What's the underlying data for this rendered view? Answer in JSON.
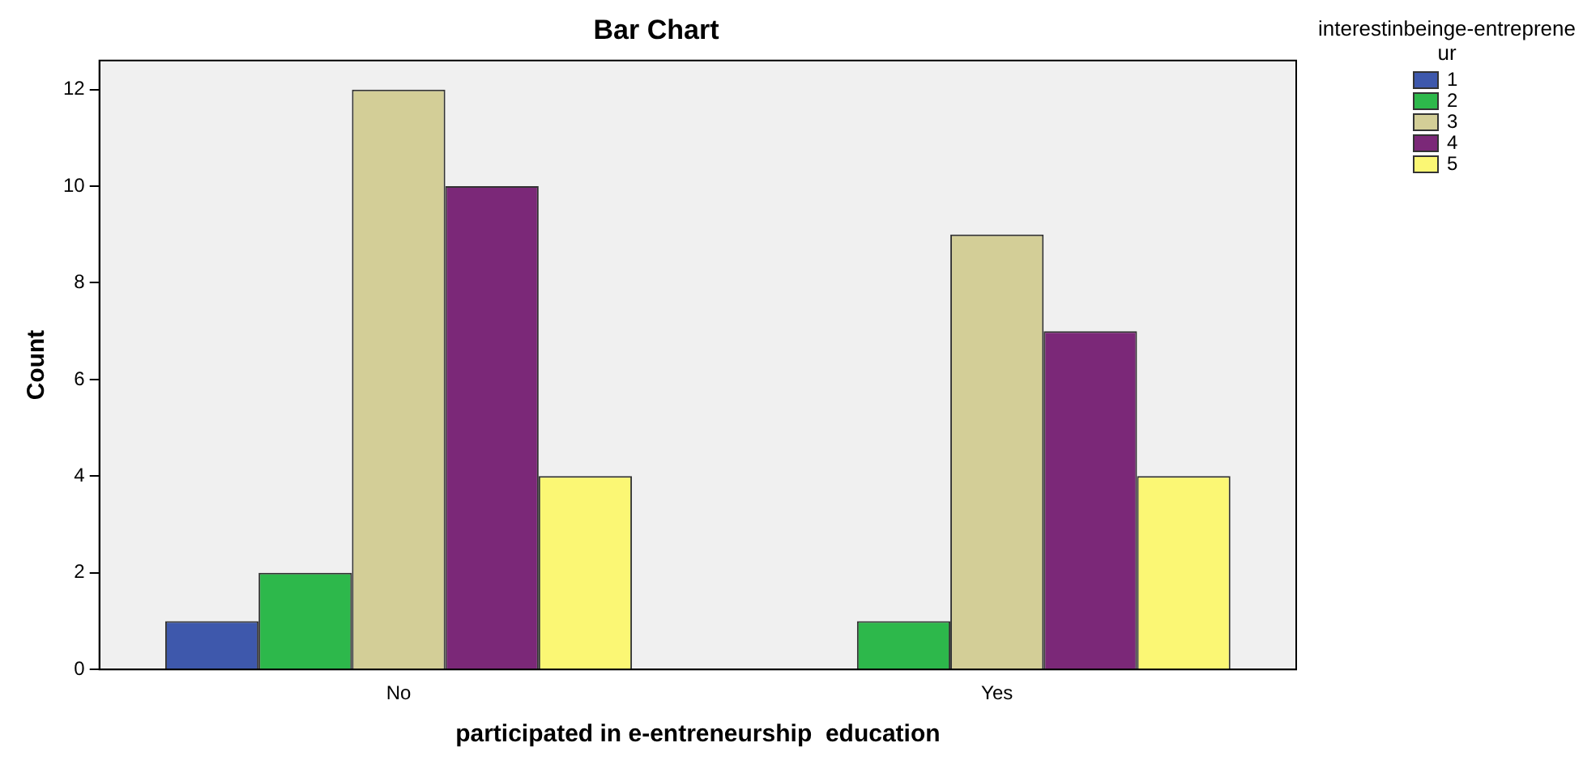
{
  "chart_data": {
    "type": "bar",
    "title": "Bar Chart",
    "xlabel": "participated in e-entreneurship  education",
    "ylabel": "Count",
    "legend_title": "interestinbeinge-entrepreneur",
    "categories": [
      "No",
      "Yes"
    ],
    "series": [
      {
        "name": "1",
        "color": "#3e58ac",
        "values": [
          1,
          null
        ]
      },
      {
        "name": "2",
        "color": "#2db84b",
        "values": [
          2,
          1
        ]
      },
      {
        "name": "3",
        "color": "#d3ce97",
        "values": [
          12,
          9
        ]
      },
      {
        "name": "4",
        "color": "#7b2878",
        "values": [
          10,
          7
        ]
      },
      {
        "name": "5",
        "color": "#fbf774",
        "values": [
          4,
          4
        ]
      }
    ],
    "ylim": [
      0,
      12.6
    ],
    "yticks": [
      0,
      2,
      4,
      6,
      8,
      10,
      12
    ],
    "grid": false,
    "legend": "top right"
  }
}
